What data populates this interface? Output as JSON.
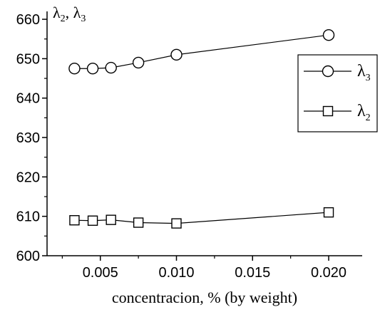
{
  "chart_data": {
    "type": "scatter",
    "ylabel": "λ2, λ3",
    "xlabel": "concentracion, % (by weight)",
    "xlim": [
      0.0015,
      0.0222
    ],
    "ylim": [
      600,
      662
    ],
    "xticks": [
      0.005,
      0.01,
      0.015,
      0.02
    ],
    "xtick_labels": [
      "0.005",
      "0.010",
      "0.015",
      "0.020"
    ],
    "yticks": [
      600,
      610,
      620,
      630,
      640,
      650,
      660
    ],
    "ytick_labels": [
      "600",
      "610",
      "620",
      "630",
      "640",
      "650",
      "660"
    ],
    "legend_position": "right",
    "grid": false,
    "series": [
      {
        "name": "λ3",
        "marker": "circle",
        "x": [
          0.0033,
          0.0045,
          0.0057,
          0.0075,
          0.01,
          0.02
        ],
        "y": [
          647.5,
          647.5,
          647.7,
          649.0,
          651.0,
          656.0
        ]
      },
      {
        "name": "λ2",
        "marker": "square",
        "x": [
          0.0033,
          0.0045,
          0.0057,
          0.0075,
          0.01,
          0.02
        ],
        "y": [
          609.0,
          608.9,
          609.1,
          608.4,
          608.2,
          611.0
        ]
      }
    ]
  }
}
